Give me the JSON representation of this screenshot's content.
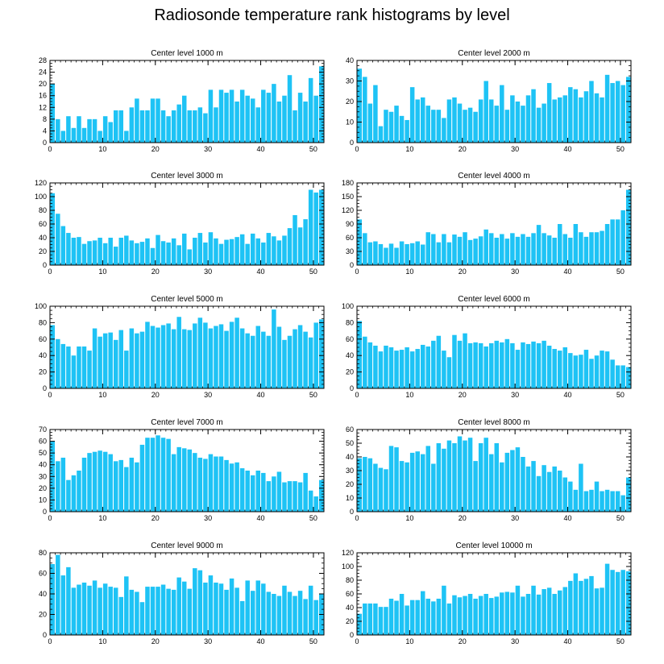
{
  "figure_title": "Radiosonde temperature rank histograms by level",
  "colors": {
    "bar": "#1EC3F5",
    "axis": "#000000"
  },
  "chart_data": [
    {
      "type": "bar",
      "title": "Center level 1000 m",
      "xlim": [
        0,
        52
      ],
      "xticks": [
        0,
        10,
        20,
        30,
        40,
        50
      ],
      "ylim": [
        0,
        28
      ],
      "yticks": [
        0,
        4,
        8,
        12,
        16,
        20,
        24,
        28
      ],
      "categories": [
        0,
        1,
        2,
        3,
        4,
        5,
        6,
        7,
        8,
        9,
        10,
        11,
        12,
        13,
        14,
        15,
        16,
        17,
        18,
        19,
        20,
        21,
        22,
        23,
        24,
        25,
        26,
        27,
        28,
        29,
        30,
        31,
        32,
        33,
        34,
        35,
        36,
        37,
        38,
        39,
        40,
        41,
        42,
        43,
        44,
        45,
        46,
        47,
        48,
        49,
        50,
        51
      ],
      "values": [
        20,
        8,
        4,
        9,
        5,
        9,
        5,
        8,
        8,
        4,
        9,
        7,
        11,
        11,
        4,
        12,
        15,
        11,
        11,
        15,
        15,
        11,
        9,
        11,
        13,
        16,
        11,
        11,
        12,
        10,
        18,
        12,
        18,
        17,
        18,
        14,
        18,
        16,
        15,
        12,
        18,
        17,
        20,
        14,
        16,
        23,
        11,
        17,
        14,
        22,
        16,
        26
      ]
    },
    {
      "type": "bar",
      "title": "Center level 2000 m",
      "xlim": [
        0,
        52
      ],
      "xticks": [
        0,
        10,
        20,
        30,
        40,
        50
      ],
      "ylim": [
        0,
        40
      ],
      "yticks": [
        0,
        10,
        20,
        30,
        40
      ],
      "categories": [
        0,
        1,
        2,
        3,
        4,
        5,
        6,
        7,
        8,
        9,
        10,
        11,
        12,
        13,
        14,
        15,
        16,
        17,
        18,
        19,
        20,
        21,
        22,
        23,
        24,
        25,
        26,
        27,
        28,
        29,
        30,
        31,
        32,
        33,
        34,
        35,
        36,
        37,
        38,
        39,
        40,
        41,
        42,
        43,
        44,
        45,
        46,
        47,
        48,
        49,
        50,
        51
      ],
      "values": [
        36,
        32,
        19,
        28,
        8,
        16,
        15,
        18,
        13,
        11,
        27,
        21,
        22,
        18,
        16,
        16,
        12,
        21,
        22,
        19,
        16,
        17,
        15,
        21,
        30,
        21,
        18,
        28,
        16,
        23,
        20,
        18,
        23,
        26,
        17,
        19,
        29,
        21,
        22,
        23,
        27,
        26,
        22,
        25,
        30,
        24,
        22,
        33,
        29,
        30,
        28,
        32
      ]
    },
    {
      "type": "bar",
      "title": "Center level 3000 m",
      "xlim": [
        0,
        52
      ],
      "xticks": [
        0,
        10,
        20,
        30,
        40,
        50
      ],
      "ylim": [
        0,
        120
      ],
      "yticks": [
        0,
        20,
        40,
        60,
        80,
        100,
        120
      ],
      "categories": [
        0,
        1,
        2,
        3,
        4,
        5,
        6,
        7,
        8,
        9,
        10,
        11,
        12,
        13,
        14,
        15,
        16,
        17,
        18,
        19,
        20,
        21,
        22,
        23,
        24,
        25,
        26,
        27,
        28,
        29,
        30,
        31,
        32,
        33,
        34,
        35,
        36,
        37,
        38,
        39,
        40,
        41,
        42,
        43,
        44,
        45,
        46,
        47,
        48,
        49,
        50,
        51
      ],
      "values": [
        105,
        75,
        57,
        47,
        40,
        41,
        31,
        35,
        36,
        40,
        32,
        40,
        27,
        40,
        43,
        36,
        32,
        34,
        39,
        25,
        44,
        35,
        33,
        39,
        29,
        46,
        23,
        40,
        47,
        33,
        48,
        39,
        31,
        37,
        38,
        41,
        45,
        31,
        46,
        39,
        33,
        47,
        42,
        36,
        43,
        54,
        73,
        55,
        67,
        110,
        106,
        110
      ]
    },
    {
      "type": "bar",
      "title": "Center level 4000 m",
      "xlim": [
        0,
        52
      ],
      "xticks": [
        0,
        10,
        20,
        30,
        40,
        50
      ],
      "ylim": [
        0,
        180
      ],
      "yticks": [
        0,
        30,
        60,
        90,
        120,
        150,
        180
      ],
      "categories": [
        0,
        1,
        2,
        3,
        4,
        5,
        6,
        7,
        8,
        9,
        10,
        11,
        12,
        13,
        14,
        15,
        16,
        17,
        18,
        19,
        20,
        21,
        22,
        23,
        24,
        25,
        26,
        27,
        28,
        29,
        30,
        31,
        32,
        33,
        34,
        35,
        36,
        37,
        38,
        39,
        40,
        41,
        42,
        43,
        44,
        45,
        46,
        47,
        48,
        49,
        50,
        51
      ],
      "values": [
        100,
        70,
        50,
        52,
        46,
        38,
        47,
        38,
        52,
        46,
        48,
        52,
        45,
        72,
        68,
        50,
        68,
        50,
        67,
        62,
        72,
        55,
        58,
        63,
        78,
        70,
        60,
        68,
        58,
        70,
        62,
        68,
        62,
        70,
        88,
        70,
        65,
        60,
        90,
        68,
        60,
        90,
        72,
        62,
        72,
        72,
        75,
        90,
        100,
        100,
        120,
        165
      ]
    },
    {
      "type": "bar",
      "title": "Center level 5000 m",
      "xlim": [
        0,
        52
      ],
      "xticks": [
        0,
        10,
        20,
        30,
        40,
        50
      ],
      "ylim": [
        0,
        100
      ],
      "yticks": [
        0,
        20,
        40,
        60,
        80,
        100
      ],
      "categories": [
        0,
        1,
        2,
        3,
        4,
        5,
        6,
        7,
        8,
        9,
        10,
        11,
        12,
        13,
        14,
        15,
        16,
        17,
        18,
        19,
        20,
        21,
        22,
        23,
        24,
        25,
        26,
        27,
        28,
        29,
        30,
        31,
        32,
        33,
        34,
        35,
        36,
        37,
        38,
        39,
        40,
        41,
        42,
        43,
        44,
        45,
        46,
        47,
        48,
        49,
        50,
        51
      ],
      "values": [
        77,
        60,
        54,
        51,
        40,
        51,
        51,
        46,
        73,
        63,
        67,
        68,
        59,
        71,
        46,
        73,
        67,
        69,
        81,
        76,
        74,
        77,
        79,
        72,
        87,
        72,
        71,
        79,
        86,
        80,
        73,
        76,
        78,
        70,
        81,
        86,
        73,
        67,
        64,
        76,
        69,
        64,
        96,
        75,
        59,
        64,
        72,
        77,
        69,
        62,
        80,
        84
      ]
    },
    {
      "type": "bar",
      "title": "Center level 6000 m",
      "xlim": [
        0,
        52
      ],
      "xticks": [
        0,
        10,
        20,
        30,
        40,
        50
      ],
      "ylim": [
        0,
        100
      ],
      "yticks": [
        0,
        20,
        40,
        60,
        80,
        100
      ],
      "categories": [
        0,
        1,
        2,
        3,
        4,
        5,
        6,
        7,
        8,
        9,
        10,
        11,
        12,
        13,
        14,
        15,
        16,
        17,
        18,
        19,
        20,
        21,
        22,
        23,
        24,
        25,
        26,
        27,
        28,
        29,
        30,
        31,
        32,
        33,
        34,
        35,
        36,
        37,
        38,
        39,
        40,
        41,
        42,
        43,
        44,
        45,
        46,
        47,
        48,
        49,
        50,
        51
      ],
      "values": [
        82,
        63,
        56,
        52,
        45,
        52,
        50,
        46,
        47,
        50,
        45,
        48,
        53,
        51,
        58,
        64,
        46,
        38,
        65,
        58,
        67,
        55,
        56,
        55,
        51,
        55,
        58,
        56,
        60,
        55,
        47,
        56,
        54,
        57,
        55,
        58,
        52,
        48,
        46,
        50,
        43,
        40,
        41,
        47,
        36,
        40,
        46,
        45,
        35,
        28,
        28,
        26
      ]
    },
    {
      "type": "bar",
      "title": "Center level 7000 m",
      "xlim": [
        0,
        52
      ],
      "xticks": [
        0,
        10,
        20,
        30,
        40,
        50
      ],
      "ylim": [
        0,
        70
      ],
      "yticks": [
        0,
        10,
        20,
        30,
        40,
        50,
        60,
        70
      ],
      "categories": [
        0,
        1,
        2,
        3,
        4,
        5,
        6,
        7,
        8,
        9,
        10,
        11,
        12,
        13,
        14,
        15,
        16,
        17,
        18,
        19,
        20,
        21,
        22,
        23,
        24,
        25,
        26,
        27,
        28,
        29,
        30,
        31,
        32,
        33,
        34,
        35,
        36,
        37,
        38,
        39,
        40,
        41,
        42,
        43,
        44,
        45,
        46,
        47,
        48,
        49,
        50,
        51
      ],
      "values": [
        60,
        43,
        46,
        27,
        31,
        35,
        46,
        50,
        51,
        52,
        51,
        49,
        43,
        44,
        38,
        46,
        42,
        57,
        63,
        63,
        65,
        63,
        62,
        49,
        55,
        54,
        53,
        50,
        46,
        45,
        49,
        47,
        47,
        44,
        41,
        42,
        37,
        35,
        31,
        35,
        33,
        26,
        30,
        34,
        25,
        26,
        26,
        25,
        33,
        18,
        13,
        27
      ]
    },
    {
      "type": "bar",
      "title": "Center level 8000 m",
      "xlim": [
        0,
        52
      ],
      "xticks": [
        0,
        10,
        20,
        30,
        40,
        50
      ],
      "ylim": [
        0,
        60
      ],
      "yticks": [
        0,
        10,
        20,
        30,
        40,
        50,
        60
      ],
      "categories": [
        0,
        1,
        2,
        3,
        4,
        5,
        6,
        7,
        8,
        9,
        10,
        11,
        12,
        13,
        14,
        15,
        16,
        17,
        18,
        19,
        20,
        21,
        22,
        23,
        24,
        25,
        26,
        27,
        28,
        29,
        30,
        31,
        32,
        33,
        34,
        35,
        36,
        37,
        38,
        39,
        40,
        41,
        42,
        43,
        44,
        45,
        46,
        47,
        48,
        49,
        50,
        51
      ],
      "values": [
        39,
        40,
        39,
        35,
        32,
        31,
        48,
        47,
        37,
        36,
        43,
        44,
        42,
        48,
        35,
        50,
        46,
        52,
        50,
        55,
        52,
        54,
        37,
        50,
        54,
        42,
        50,
        36,
        43,
        45,
        47,
        40,
        33,
        37,
        26,
        34,
        29,
        33,
        30,
        25,
        22,
        16,
        35,
        15,
        16,
        22,
        15,
        16,
        15,
        15,
        12,
        25
      ]
    },
    {
      "type": "bar",
      "title": "Center level 9000 m",
      "xlim": [
        0,
        52
      ],
      "xticks": [
        0,
        10,
        20,
        30,
        40,
        50
      ],
      "ylim": [
        0,
        80
      ],
      "yticks": [
        0,
        20,
        40,
        60,
        80
      ],
      "categories": [
        0,
        1,
        2,
        3,
        4,
        5,
        6,
        7,
        8,
        9,
        10,
        11,
        12,
        13,
        14,
        15,
        16,
        17,
        18,
        19,
        20,
        21,
        22,
        23,
        24,
        25,
        26,
        27,
        28,
        29,
        30,
        31,
        32,
        33,
        34,
        35,
        36,
        37,
        38,
        39,
        40,
        41,
        42,
        43,
        44,
        45,
        46,
        47,
        48,
        49,
        50,
        51
      ],
      "values": [
        69,
        78,
        58,
        66,
        46,
        49,
        51,
        48,
        53,
        46,
        50,
        47,
        46,
        37,
        57,
        44,
        42,
        32,
        47,
        47,
        47,
        49,
        45,
        44,
        56,
        52,
        45,
        65,
        63,
        51,
        58,
        51,
        50,
        44,
        55,
        46,
        33,
        53,
        43,
        53,
        50,
        42,
        40,
        38,
        48,
        42,
        38,
        43,
        35,
        48,
        34,
        40
      ]
    },
    {
      "type": "bar",
      "title": "Center level 10000 m",
      "xlim": [
        0,
        52
      ],
      "xticks": [
        0,
        10,
        20,
        30,
        40,
        50
      ],
      "ylim": [
        0,
        120
      ],
      "yticks": [
        0,
        20,
        40,
        60,
        80,
        100,
        120
      ],
      "categories": [
        0,
        1,
        2,
        3,
        4,
        5,
        6,
        7,
        8,
        9,
        10,
        11,
        12,
        13,
        14,
        15,
        16,
        17,
        18,
        19,
        20,
        21,
        22,
        23,
        24,
        25,
        26,
        27,
        28,
        29,
        30,
        31,
        32,
        33,
        34,
        35,
        36,
        37,
        38,
        39,
        40,
        41,
        42,
        43,
        44,
        45,
        46,
        47,
        48,
        49,
        50,
        51
      ],
      "values": [
        31,
        46,
        46,
        46,
        41,
        41,
        53,
        50,
        60,
        43,
        51,
        51,
        64,
        53,
        49,
        53,
        72,
        46,
        58,
        55,
        57,
        60,
        53,
        57,
        60,
        54,
        56,
        62,
        63,
        62,
        72,
        56,
        60,
        72,
        59,
        67,
        69,
        60,
        65,
        70,
        79,
        90,
        79,
        82,
        86,
        68,
        69,
        104,
        95,
        92,
        95,
        93
      ]
    }
  ]
}
